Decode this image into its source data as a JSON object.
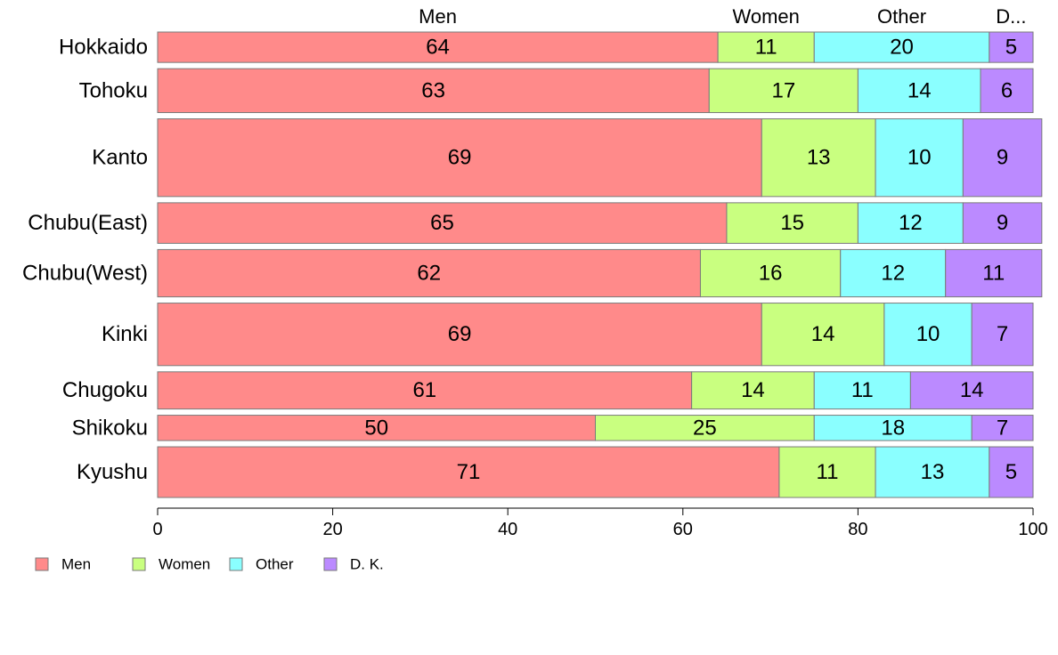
{
  "chart_data": {
    "type": "bar",
    "orientation": "horizontal",
    "stacked": true,
    "proportional_row_heights": true,
    "categories": [
      "Hokkaido",
      "Tohoku",
      "Kanto",
      "Chubu(East)",
      "Chubu(West)",
      "Kinki",
      "Chugoku",
      "Shikoku",
      "Kyushu"
    ],
    "series": [
      {
        "name": "Men",
        "top_label": "Men",
        "color": "#ff8a8a",
        "values": [
          64,
          63,
          69,
          65,
          62,
          69,
          61,
          50,
          71
        ]
      },
      {
        "name": "Women",
        "top_label": "Women",
        "color": "#c9ff80",
        "values": [
          11,
          17,
          13,
          15,
          16,
          14,
          14,
          25,
          11
        ]
      },
      {
        "name": "Other",
        "top_label": "Other",
        "color": "#8affff",
        "values": [
          20,
          14,
          10,
          12,
          12,
          10,
          11,
          18,
          13
        ]
      },
      {
        "name": "D. K.",
        "top_label": "D...",
        "color": "#bb8aff",
        "values": [
          5,
          6,
          9,
          9,
          11,
          7,
          14,
          7,
          5
        ]
      }
    ],
    "row_weights": [
      3.6,
      5.2,
      9.2,
      4.8,
      5.6,
      7.4,
      4.4,
      3.0,
      6.0
    ],
    "xlim": [
      0,
      100
    ],
    "xticks": [
      "0",
      "20",
      "40",
      "60",
      "80",
      "100"
    ],
    "grid": false,
    "legend_position": "bottom-left",
    "title": "",
    "xlabel": "",
    "ylabel": ""
  }
}
